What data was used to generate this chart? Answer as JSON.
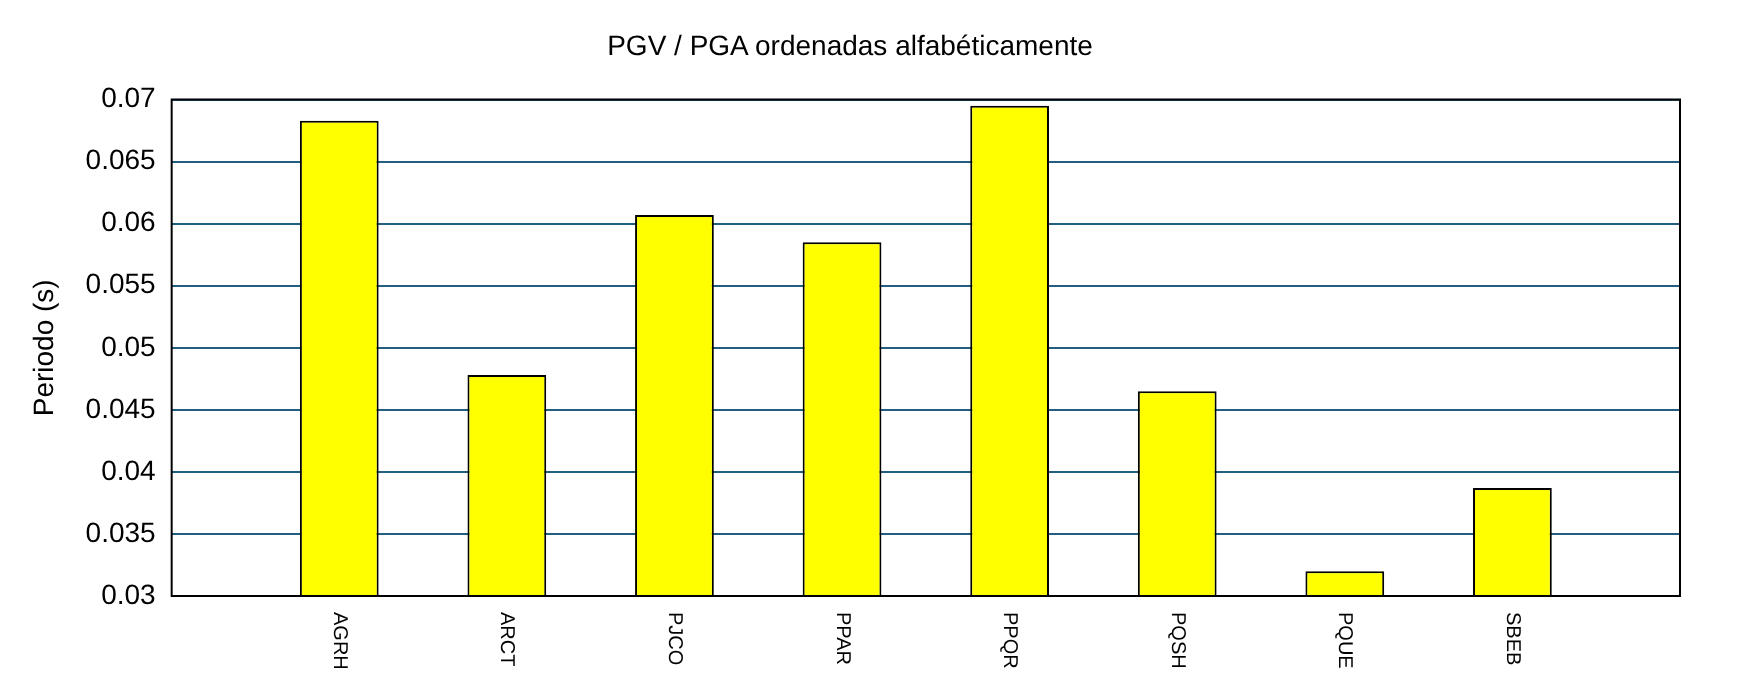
{
  "chart_data": {
    "type": "bar",
    "title": "PGV / PGA ordenadas alfabéticamente",
    "ylabel": "Periodo (s)",
    "categories": [
      "AGRH",
      "ARCT",
      "PJCO",
      "PPAR",
      "PPQR",
      "PQSH",
      "PQUE",
      "SBEB"
    ],
    "values": [
      0.0683,
      0.0478,
      0.0607,
      0.0585,
      0.0695,
      0.0465,
      0.032,
      0.0387
    ],
    "color": "#ffff00",
    "ylim": [
      0.03,
      0.07
    ],
    "yticks": [
      0.03,
      0.035,
      0.04,
      0.045,
      0.05,
      0.055,
      0.06,
      0.065,
      0.07
    ],
    "grid": "y"
  }
}
